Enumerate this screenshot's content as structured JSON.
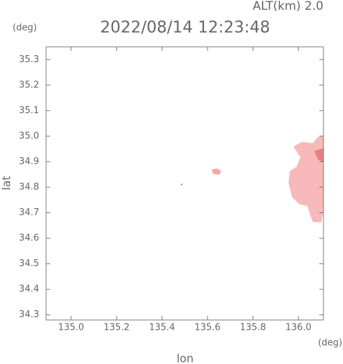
{
  "chart_data": {
    "type": "map",
    "title": "2022/08/14 12:23:48",
    "subtitle": "ALT(km) 2.0",
    "y_unit": "(deg)",
    "x_unit": "(deg)",
    "xlabel": "lon",
    "ylabel": "lat",
    "xlim": [
      134.89,
      136.11
    ],
    "ylim": [
      34.28,
      35.35
    ],
    "xticks": [
      {
        "value": 135,
        "label": "135.0"
      },
      135.2,
      135.4,
      135.6,
      135.8,
      {
        "value": 136,
        "label": "136.0"
      }
    ],
    "yticks": [
      34.3,
      34.4,
      34.5,
      34.6,
      34.7,
      34.8,
      34.9,
      {
        "value": 35,
        "label": "35.0"
      },
      35.1,
      35.2,
      35.3
    ]
  }
}
